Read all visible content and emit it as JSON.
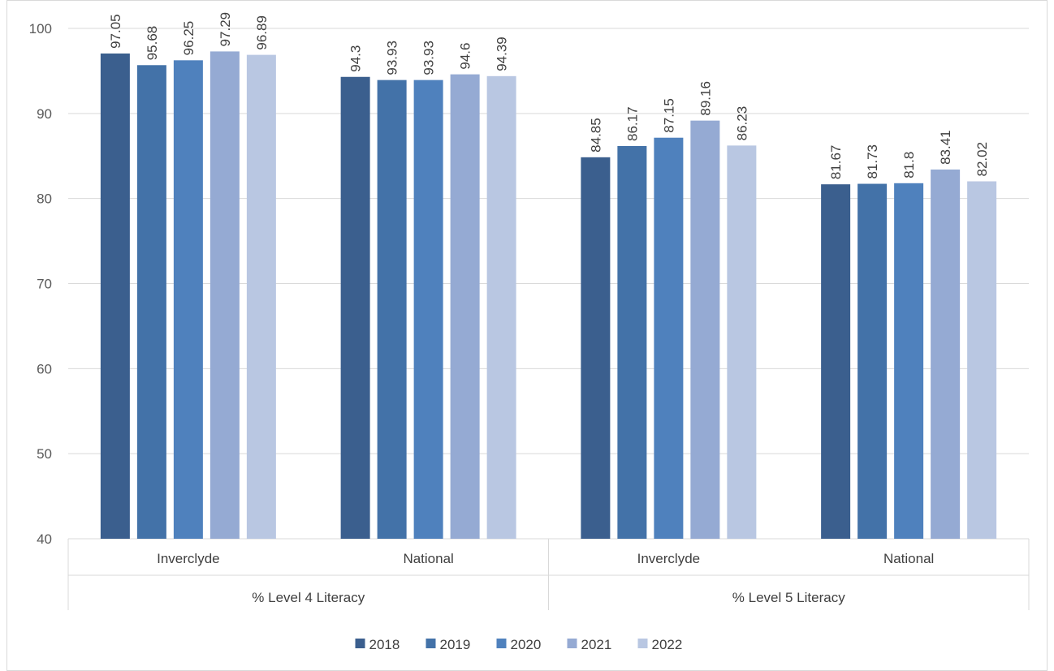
{
  "chart_data": {
    "type": "bar",
    "title": "",
    "xlabel": "",
    "ylabel": "",
    "ylim": [
      40,
      100
    ],
    "yticks": [
      40,
      50,
      60,
      70,
      80,
      90,
      100
    ],
    "grid": true,
    "legend_position": "bottom",
    "groups": [
      {
        "label": "% Level 4 Literacy",
        "categories": [
          "Inverclyde",
          "National"
        ]
      },
      {
        "label": "% Level 5 Literacy",
        "categories": [
          "Inverclyde",
          "National"
        ]
      }
    ],
    "categories": [
      "Inverclyde",
      "National",
      "Inverclyde",
      "National"
    ],
    "series": [
      {
        "name": "2018",
        "color": "#3b5f8e",
        "values": [
          97.05,
          94.3,
          84.85,
          81.67
        ]
      },
      {
        "name": "2019",
        "color": "#4372a8",
        "values": [
          95.68,
          93.93,
          86.17,
          81.73
        ]
      },
      {
        "name": "2020",
        "color": "#4f81bd",
        "values": [
          96.25,
          93.93,
          87.15,
          81.8
        ]
      },
      {
        "name": "2021",
        "color": "#95aad3",
        "values": [
          97.29,
          94.6,
          89.16,
          83.41
        ]
      },
      {
        "name": "2022",
        "color": "#b9c7e2",
        "values": [
          96.89,
          94.39,
          86.23,
          82.02
        ]
      }
    ]
  }
}
